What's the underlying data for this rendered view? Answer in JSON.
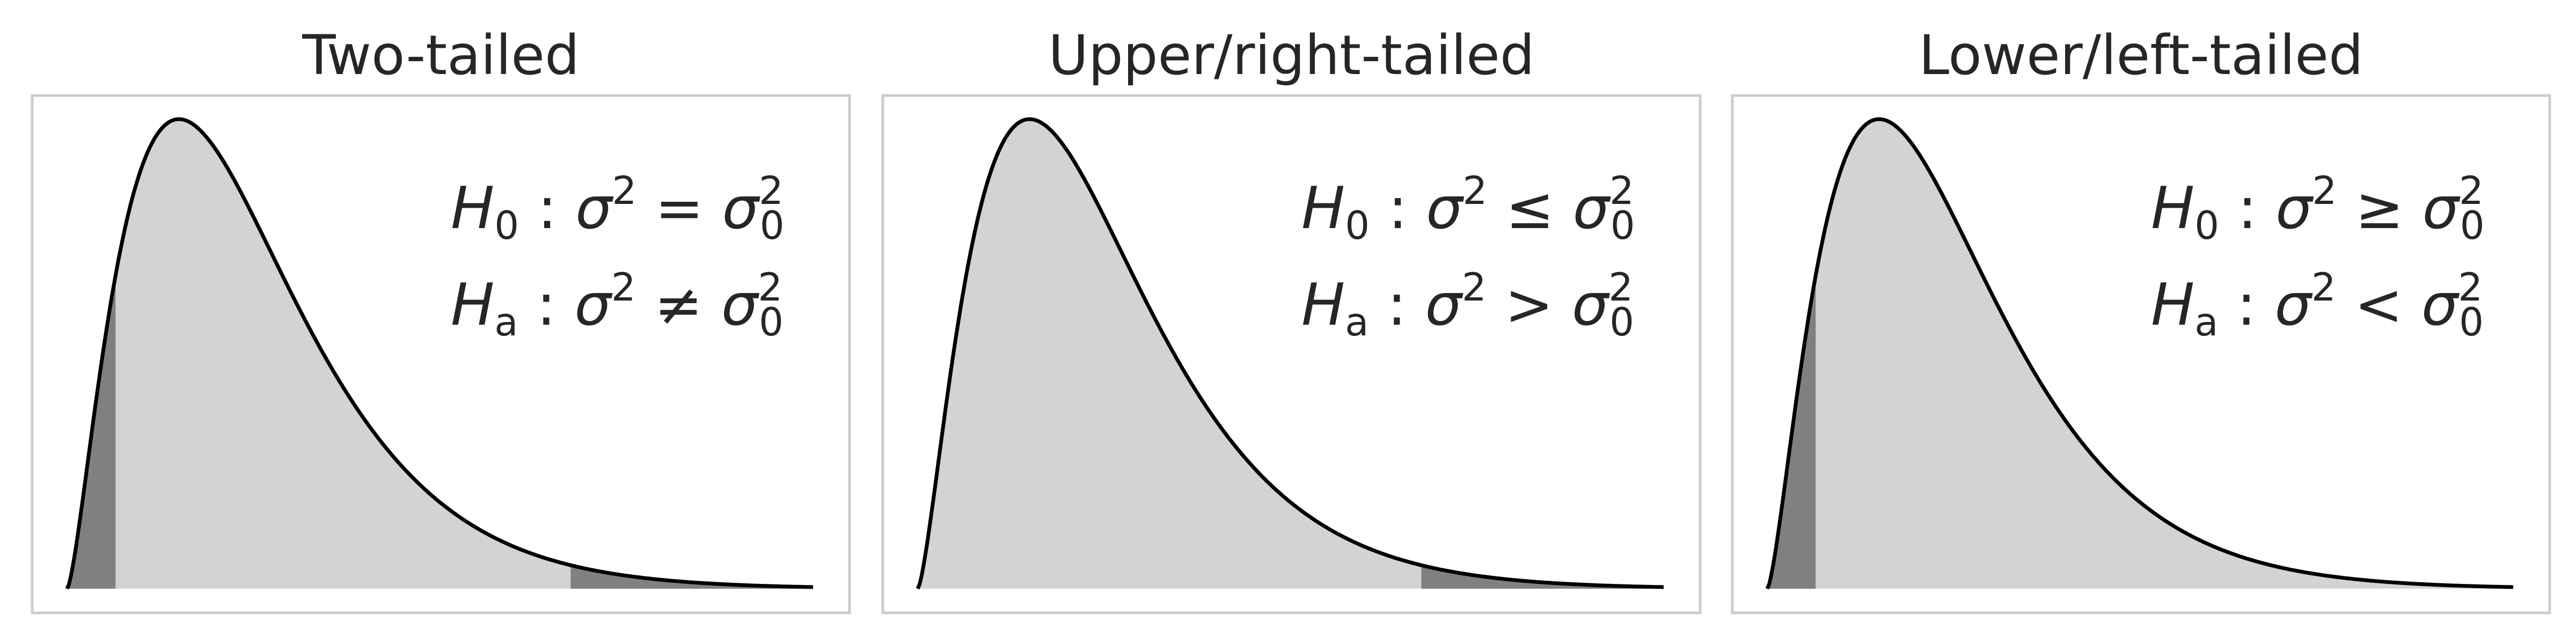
{
  "chart_data": [
    {
      "type": "area",
      "title": "Two-tailed",
      "distribution": "chi-square",
      "shaded_tails": [
        "left",
        "right"
      ],
      "hypotheses": {
        "null": {
          "H": "H",
          "sub": "0",
          "rel": "=",
          "op": "="
        },
        "alt": {
          "H": "H",
          "sub": "a",
          "rel": "≠",
          "op": "≠"
        }
      },
      "colors": {
        "body": "#d3d3d3",
        "tail": "#808080",
        "curve": "#000000"
      },
      "grid": false
    },
    {
      "type": "area",
      "title": "Upper/right-tailed",
      "distribution": "chi-square",
      "shaded_tails": [
        "right"
      ],
      "hypotheses": {
        "null": {
          "H": "H",
          "sub": "0",
          "rel": "≤",
          "op": "≤"
        },
        "alt": {
          "H": "H",
          "sub": "a",
          "rel": ">",
          "op": ">"
        }
      },
      "colors": {
        "body": "#d3d3d3",
        "tail": "#808080",
        "curve": "#000000"
      },
      "grid": false
    },
    {
      "type": "area",
      "title": "Lower/left-tailed",
      "distribution": "chi-square",
      "shaded_tails": [
        "left"
      ],
      "hypotheses": {
        "null": {
          "H": "H",
          "sub": "0",
          "rel": "≥",
          "op": "≥"
        },
        "alt": {
          "H": "H",
          "sub": "a",
          "rel": "<",
          "op": "<"
        }
      },
      "colors": {
        "body": "#d3d3d3",
        "tail": "#808080",
        "curve": "#000000"
      },
      "grid": false
    }
  ],
  "symbols": {
    "sigma": "σ",
    "sq": "2",
    "zero": "0",
    "colon": ":"
  }
}
